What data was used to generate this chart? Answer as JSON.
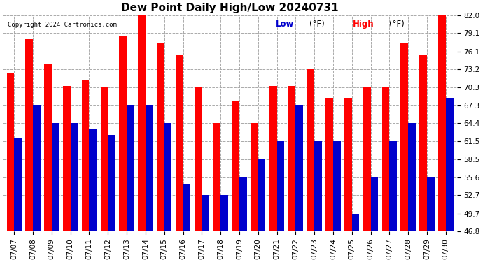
{
  "title": "Dew Point Daily High/Low 20240731",
  "copyright": "Copyright 2024 Cartronics.com",
  "dates": [
    "07/07",
    "07/08",
    "07/09",
    "07/10",
    "07/11",
    "07/12",
    "07/13",
    "07/14",
    "07/15",
    "07/16",
    "07/17",
    "07/18",
    "07/19",
    "07/20",
    "07/21",
    "07/22",
    "07/23",
    "07/24",
    "07/25",
    "07/26",
    "07/27",
    "07/28",
    "07/29",
    "07/30"
  ],
  "high": [
    72.5,
    78.1,
    74.0,
    70.5,
    71.5,
    70.3,
    78.5,
    82.0,
    77.5,
    75.5,
    70.3,
    64.4,
    68.0,
    64.4,
    70.5,
    70.5,
    73.2,
    68.5,
    68.5,
    70.3,
    70.3,
    77.5,
    75.5,
    82.0
  ],
  "low": [
    62.0,
    67.3,
    64.4,
    64.4,
    63.5,
    62.5,
    67.3,
    67.3,
    64.4,
    54.5,
    52.7,
    52.7,
    55.6,
    58.5,
    61.5,
    67.3,
    61.5,
    61.5,
    49.7,
    55.6,
    61.5,
    64.4,
    55.6,
    68.5
  ],
  "ylim_min": 46.8,
  "ylim_max": 82.0,
  "yticks": [
    46.8,
    49.7,
    52.7,
    55.6,
    58.5,
    61.5,
    64.4,
    67.3,
    70.3,
    73.2,
    76.1,
    79.1,
    82.0
  ],
  "bar_color_high": "#ff0000",
  "bar_color_low": "#0000cc",
  "bg_color": "#ffffff",
  "grid_color": "#aaaaaa",
  "title_fontsize": 11,
  "tick_fontsize": 7.5,
  "copyright_fontsize": 6.5,
  "legend_low_label": "Low",
  "legend_high_label": "High",
  "unit_label": "(°F)"
}
